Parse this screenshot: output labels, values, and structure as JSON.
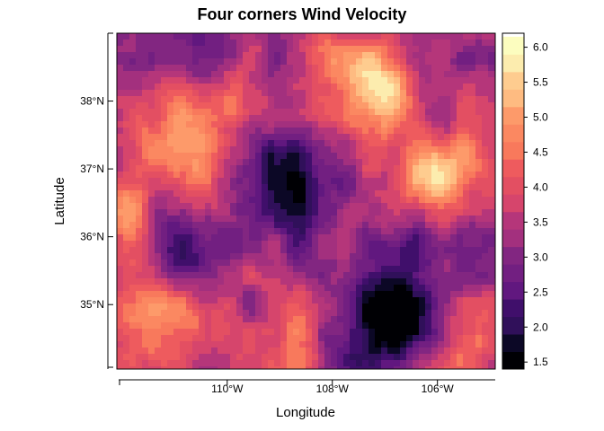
{
  "chart_data": {
    "type": "heatmap",
    "title": "Four corners Wind Velocity",
    "xlabel": "Longitude",
    "ylabel": "Latitude",
    "xlim": [
      -112.1,
      -104.9
    ],
    "ylim": [
      34.05,
      39.0
    ],
    "x_ticks": [
      {
        "value": -110,
        "label": "110°W"
      },
      {
        "value": -108,
        "label": "108°W"
      },
      {
        "value": -106,
        "label": "106°W"
      }
    ],
    "y_ticks": [
      {
        "value": 35,
        "label": "35°N"
      },
      {
        "value": 36,
        "label": "36°N"
      },
      {
        "value": 37,
        "label": "37°N"
      },
      {
        "value": 38,
        "label": "38°N"
      }
    ],
    "colorbar": {
      "range": [
        1.4,
        6.2
      ],
      "step": 0.25,
      "tick_values": [
        1.5,
        2.0,
        2.5,
        3.0,
        3.5,
        4.0,
        4.5,
        5.0,
        5.5,
        6.0
      ],
      "tick_labels": [
        "1.5",
        "2.0",
        "2.5",
        "3.0",
        "3.5",
        "4.0",
        "4.5",
        "5.0",
        "5.5",
        "6.0"
      ],
      "palette": [
        "#000004",
        "#0c0826",
        "#1d1147",
        "#30105a",
        "#400f6b",
        "#51127c",
        "#61187f",
        "#721f81",
        "#822681",
        "#932b80",
        "#a3307e",
        "#b5367a",
        "#c53c75",
        "#d6456c",
        "#e34f62",
        "#ee5b5e",
        "#f4695c",
        "#f8795c",
        "#fb8861",
        "#fd9a6a",
        "#feaa74",
        "#febb81",
        "#fecc8f",
        "#fddc9e",
        "#fcecae",
        "#fcfdbf"
      ]
    },
    "field": {
      "base": 3.4,
      "features": [
        {
          "lon": -111.1,
          "lat": 35.95,
          "amp": -1.1,
          "r": 0.55
        },
        {
          "lon": -110.6,
          "lat": 35.75,
          "amp": -0.8,
          "r": 0.45
        },
        {
          "lon": -108.6,
          "lat": 36.55,
          "amp": -1.2,
          "r": 0.6
        },
        {
          "lon": -109.3,
          "lat": 37.1,
          "amp": -0.9,
          "r": 0.45
        },
        {
          "lon": -107.1,
          "lat": 34.95,
          "amp": -1.5,
          "r": 0.5
        },
        {
          "lon": -106.55,
          "lat": 34.65,
          "amp": -1.1,
          "r": 0.4
        },
        {
          "lon": -106.45,
          "lat": 35.45,
          "amp": -0.9,
          "r": 0.5
        },
        {
          "lon": -106.2,
          "lat": 37.9,
          "amp": -1.0,
          "r": 0.55
        },
        {
          "lon": -110.4,
          "lat": 38.6,
          "amp": -1.0,
          "r": 0.5
        },
        {
          "lon": -111.7,
          "lat": 38.5,
          "amp": -0.8,
          "r": 0.35
        },
        {
          "lon": -105.3,
          "lat": 36.2,
          "amp": -0.7,
          "r": 0.45
        },
        {
          "lon": -107.7,
          "lat": 34.15,
          "amp": -0.9,
          "r": 0.4
        },
        {
          "lon": -106.9,
          "lat": 38.05,
          "amp": 2.4,
          "r": 0.45
        },
        {
          "lon": -106.2,
          "lat": 37.0,
          "amp": 2.3,
          "r": 0.4
        },
        {
          "lon": -105.5,
          "lat": 36.85,
          "amp": 1.3,
          "r": 0.4
        },
        {
          "lon": -107.6,
          "lat": 38.4,
          "amp": 1.1,
          "r": 0.5
        },
        {
          "lon": -111.1,
          "lat": 37.6,
          "amp": 1.2,
          "r": 0.6
        },
        {
          "lon": -110.7,
          "lat": 36.95,
          "amp": 0.8,
          "r": 0.5
        },
        {
          "lon": -111.9,
          "lat": 36.3,
          "amp": 1.5,
          "r": 0.4
        },
        {
          "lon": -111.4,
          "lat": 34.95,
          "amp": 1.4,
          "r": 0.5
        },
        {
          "lon": -110.6,
          "lat": 34.75,
          "amp": 1.1,
          "r": 0.4
        },
        {
          "lon": -109.8,
          "lat": 38.1,
          "amp": 1.2,
          "r": 0.4
        },
        {
          "lon": -108.6,
          "lat": 34.5,
          "amp": 0.9,
          "r": 0.5
        },
        {
          "lon": -105.4,
          "lat": 34.4,
          "amp": 0.9,
          "r": 0.45
        },
        {
          "lon": -105.6,
          "lat": 37.8,
          "amp": 0.6,
          "r": 0.4
        }
      ]
    }
  }
}
